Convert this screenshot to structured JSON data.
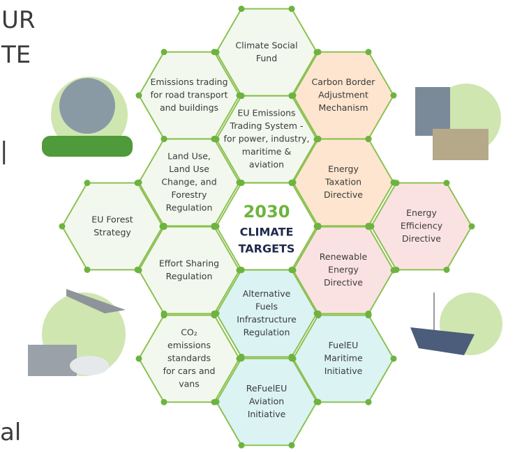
{
  "side_text": [
    "UR",
    "TE",
    "|",
    "al"
  ],
  "center": {
    "year": "2030",
    "lines": [
      "CLIMATE",
      "TARGETS"
    ]
  },
  "hexagons": [
    {
      "lines": [
        "Climate Social",
        "Fund"
      ]
    },
    {
      "lines": [
        "Emissions trading",
        "for road transport",
        "and buildings"
      ]
    },
    {
      "lines": [
        "Carbon Border",
        "Adjustment",
        "Mechanism"
      ]
    },
    {
      "lines": [
        "EU Emissions",
        "Trading System -",
        "for power, industry,",
        "maritime &",
        "aviation"
      ]
    },
    {
      "lines": [
        "Land Use,",
        "Land Use",
        "Change, and",
        "Forestry",
        "Regulation"
      ]
    },
    {
      "lines": [
        "Energy",
        "Taxation",
        "Directive"
      ]
    },
    {
      "lines": [
        "EU Forest",
        "Strategy"
      ]
    },
    {
      "lines": [
        "Energy",
        "Efficiency",
        "Directive"
      ]
    },
    {
      "lines": [
        "Effort Sharing",
        "Regulation"
      ]
    },
    {
      "lines": [
        "Renewable",
        "Energy",
        "Directive"
      ]
    },
    {
      "lines": [
        "Alternative",
        "Fuels",
        "Infrastructure",
        "Regulation"
      ]
    },
    {
      "lines": [
        "CO₂",
        "emissions",
        "standards",
        "for cars and",
        "vans"
      ]
    },
    {
      "lines": [
        "FuelEU",
        "Maritime",
        "Initiative"
      ]
    },
    {
      "lines": [
        "ReFuelEU",
        "Aviation",
        "Initiative"
      ]
    }
  ]
}
